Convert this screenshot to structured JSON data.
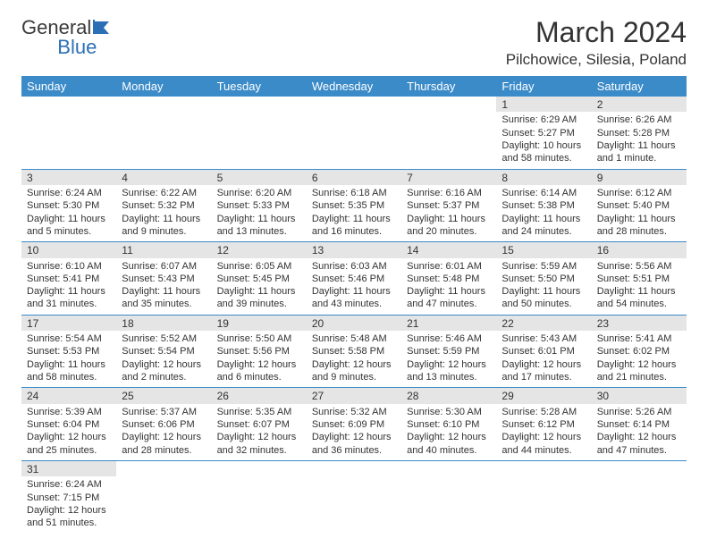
{
  "logo": {
    "text1": "General",
    "text2": "Blue"
  },
  "title": "March 2024",
  "location": "Pilchowice, Silesia, Poland",
  "colors": {
    "header_bg": "#3b8bc9",
    "header_text": "#ffffff",
    "daynum_bg": "#e5e5e5",
    "border": "#3b8bc9",
    "logo_blue": "#2d6fb5"
  },
  "weekdays": [
    "Sunday",
    "Monday",
    "Tuesday",
    "Wednesday",
    "Thursday",
    "Friday",
    "Saturday"
  ],
  "weeks": [
    [
      null,
      null,
      null,
      null,
      null,
      {
        "n": "1",
        "sr": "Sunrise: 6:29 AM",
        "ss": "Sunset: 5:27 PM",
        "dl": "Daylight: 10 hours and 58 minutes."
      },
      {
        "n": "2",
        "sr": "Sunrise: 6:26 AM",
        "ss": "Sunset: 5:28 PM",
        "dl": "Daylight: 11 hours and 1 minute."
      }
    ],
    [
      {
        "n": "3",
        "sr": "Sunrise: 6:24 AM",
        "ss": "Sunset: 5:30 PM",
        "dl": "Daylight: 11 hours and 5 minutes."
      },
      {
        "n": "4",
        "sr": "Sunrise: 6:22 AM",
        "ss": "Sunset: 5:32 PM",
        "dl": "Daylight: 11 hours and 9 minutes."
      },
      {
        "n": "5",
        "sr": "Sunrise: 6:20 AM",
        "ss": "Sunset: 5:33 PM",
        "dl": "Daylight: 11 hours and 13 minutes."
      },
      {
        "n": "6",
        "sr": "Sunrise: 6:18 AM",
        "ss": "Sunset: 5:35 PM",
        "dl": "Daylight: 11 hours and 16 minutes."
      },
      {
        "n": "7",
        "sr": "Sunrise: 6:16 AM",
        "ss": "Sunset: 5:37 PM",
        "dl": "Daylight: 11 hours and 20 minutes."
      },
      {
        "n": "8",
        "sr": "Sunrise: 6:14 AM",
        "ss": "Sunset: 5:38 PM",
        "dl": "Daylight: 11 hours and 24 minutes."
      },
      {
        "n": "9",
        "sr": "Sunrise: 6:12 AM",
        "ss": "Sunset: 5:40 PM",
        "dl": "Daylight: 11 hours and 28 minutes."
      }
    ],
    [
      {
        "n": "10",
        "sr": "Sunrise: 6:10 AM",
        "ss": "Sunset: 5:41 PM",
        "dl": "Daylight: 11 hours and 31 minutes."
      },
      {
        "n": "11",
        "sr": "Sunrise: 6:07 AM",
        "ss": "Sunset: 5:43 PM",
        "dl": "Daylight: 11 hours and 35 minutes."
      },
      {
        "n": "12",
        "sr": "Sunrise: 6:05 AM",
        "ss": "Sunset: 5:45 PM",
        "dl": "Daylight: 11 hours and 39 minutes."
      },
      {
        "n": "13",
        "sr": "Sunrise: 6:03 AM",
        "ss": "Sunset: 5:46 PM",
        "dl": "Daylight: 11 hours and 43 minutes."
      },
      {
        "n": "14",
        "sr": "Sunrise: 6:01 AM",
        "ss": "Sunset: 5:48 PM",
        "dl": "Daylight: 11 hours and 47 minutes."
      },
      {
        "n": "15",
        "sr": "Sunrise: 5:59 AM",
        "ss": "Sunset: 5:50 PM",
        "dl": "Daylight: 11 hours and 50 minutes."
      },
      {
        "n": "16",
        "sr": "Sunrise: 5:56 AM",
        "ss": "Sunset: 5:51 PM",
        "dl": "Daylight: 11 hours and 54 minutes."
      }
    ],
    [
      {
        "n": "17",
        "sr": "Sunrise: 5:54 AM",
        "ss": "Sunset: 5:53 PM",
        "dl": "Daylight: 11 hours and 58 minutes."
      },
      {
        "n": "18",
        "sr": "Sunrise: 5:52 AM",
        "ss": "Sunset: 5:54 PM",
        "dl": "Daylight: 12 hours and 2 minutes."
      },
      {
        "n": "19",
        "sr": "Sunrise: 5:50 AM",
        "ss": "Sunset: 5:56 PM",
        "dl": "Daylight: 12 hours and 6 minutes."
      },
      {
        "n": "20",
        "sr": "Sunrise: 5:48 AM",
        "ss": "Sunset: 5:58 PM",
        "dl": "Daylight: 12 hours and 9 minutes."
      },
      {
        "n": "21",
        "sr": "Sunrise: 5:46 AM",
        "ss": "Sunset: 5:59 PM",
        "dl": "Daylight: 12 hours and 13 minutes."
      },
      {
        "n": "22",
        "sr": "Sunrise: 5:43 AM",
        "ss": "Sunset: 6:01 PM",
        "dl": "Daylight: 12 hours and 17 minutes."
      },
      {
        "n": "23",
        "sr": "Sunrise: 5:41 AM",
        "ss": "Sunset: 6:02 PM",
        "dl": "Daylight: 12 hours and 21 minutes."
      }
    ],
    [
      {
        "n": "24",
        "sr": "Sunrise: 5:39 AM",
        "ss": "Sunset: 6:04 PM",
        "dl": "Daylight: 12 hours and 25 minutes."
      },
      {
        "n": "25",
        "sr": "Sunrise: 5:37 AM",
        "ss": "Sunset: 6:06 PM",
        "dl": "Daylight: 12 hours and 28 minutes."
      },
      {
        "n": "26",
        "sr": "Sunrise: 5:35 AM",
        "ss": "Sunset: 6:07 PM",
        "dl": "Daylight: 12 hours and 32 minutes."
      },
      {
        "n": "27",
        "sr": "Sunrise: 5:32 AM",
        "ss": "Sunset: 6:09 PM",
        "dl": "Daylight: 12 hours and 36 minutes."
      },
      {
        "n": "28",
        "sr": "Sunrise: 5:30 AM",
        "ss": "Sunset: 6:10 PM",
        "dl": "Daylight: 12 hours and 40 minutes."
      },
      {
        "n": "29",
        "sr": "Sunrise: 5:28 AM",
        "ss": "Sunset: 6:12 PM",
        "dl": "Daylight: 12 hours and 44 minutes."
      },
      {
        "n": "30",
        "sr": "Sunrise: 5:26 AM",
        "ss": "Sunset: 6:14 PM",
        "dl": "Daylight: 12 hours and 47 minutes."
      }
    ],
    [
      {
        "n": "31",
        "sr": "Sunrise: 6:24 AM",
        "ss": "Sunset: 7:15 PM",
        "dl": "Daylight: 12 hours and 51 minutes."
      },
      null,
      null,
      null,
      null,
      null,
      null
    ]
  ]
}
